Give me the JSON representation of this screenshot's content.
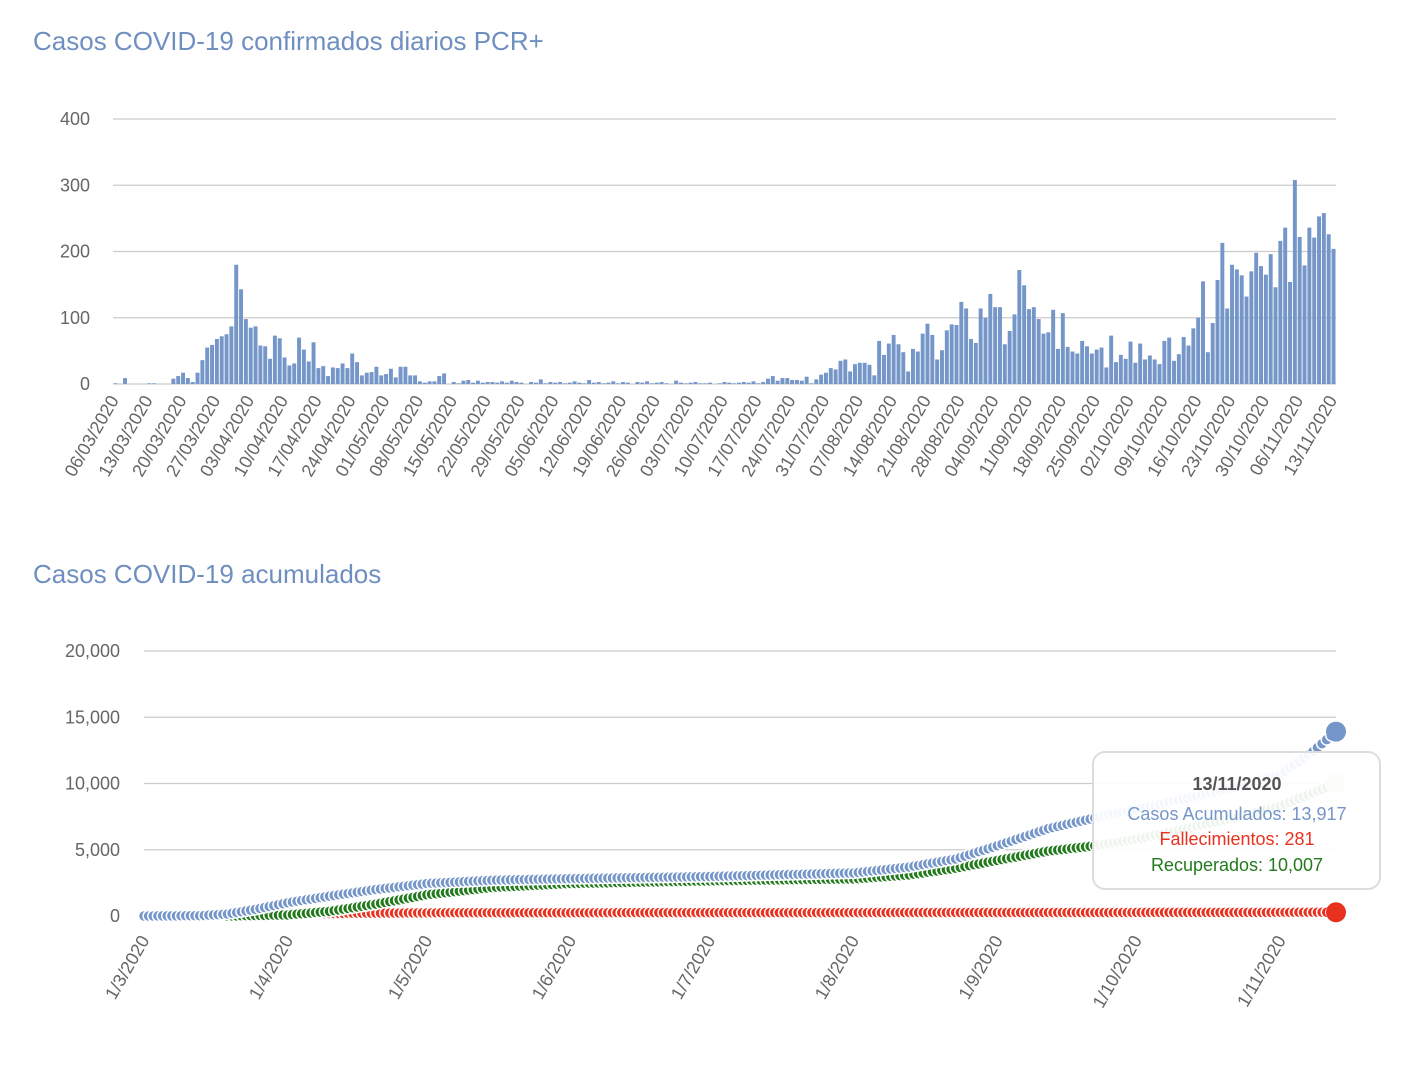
{
  "chart_data": [
    {
      "type": "bar",
      "title": "Casos COVID-19 confirmados diarios PCR+",
      "xlabel": "",
      "ylabel": "",
      "ylim": [
        0,
        400
      ],
      "yticks": [
        "0",
        "100",
        "200",
        "300",
        "400"
      ],
      "ytick_values": [
        0,
        100,
        200,
        300,
        400
      ],
      "start_date": "06/03/2020",
      "end_date": "13/11/2020",
      "xtick_every_days": 7,
      "xticks": [
        "06/03/2020",
        "13/03/2020",
        "20/03/2020",
        "27/03/2020",
        "03/04/2020",
        "10/04/2020",
        "17/04/2020",
        "24/04/2020",
        "01/05/2020",
        "08/05/2020",
        "15/05/2020",
        "22/05/2020",
        "29/05/2020",
        "05/06/2020",
        "12/06/2020",
        "19/06/2020",
        "26/06/2020",
        "03/07/2020",
        "10/07/2020",
        "17/07/2020",
        "24/07/2020",
        "31/07/2020",
        "07/08/2020",
        "14/08/2020",
        "21/08/2020",
        "28/08/2020",
        "04/09/2020",
        "11/09/2020",
        "18/09/2020",
        "25/09/2020",
        "02/10/2020",
        "09/10/2020",
        "16/10/2020",
        "23/10/2020",
        "30/10/2020",
        "06/11/2020",
        "13/11/2020"
      ],
      "grid": true,
      "color": "#7596c8",
      "values": [
        1,
        0,
        9,
        0,
        0,
        0,
        0,
        1,
        1,
        0,
        0,
        0,
        8,
        12,
        17,
        9,
        3,
        17,
        36,
        55,
        59,
        68,
        72,
        75,
        87,
        180,
        143,
        98,
        85,
        87,
        58,
        57,
        38,
        73,
        69,
        40,
        28,
        31,
        70,
        52,
        34,
        63,
        24,
        27,
        12,
        25,
        24,
        31,
        24,
        46,
        33,
        13,
        17,
        18,
        26,
        13,
        15,
        23,
        10,
        26,
        26,
        13,
        13,
        4,
        2,
        4,
        4,
        12,
        16,
        0,
        3,
        1,
        5,
        6,
        2,
        5,
        2,
        3,
        3,
        2,
        4,
        2,
        5,
        3,
        2,
        0,
        3,
        2,
        7,
        1,
        3,
        2,
        3,
        1,
        2,
        4,
        2,
        1,
        6,
        2,
        3,
        1,
        2,
        4,
        1,
        3,
        2,
        0,
        3,
        2,
        4,
        1,
        2,
        3,
        1,
        0,
        5,
        2,
        1,
        2,
        3,
        1,
        1,
        2,
        0,
        1,
        3,
        2,
        1,
        2,
        3,
        2,
        4,
        1,
        3,
        8,
        12,
        5,
        9,
        9,
        6,
        6,
        5,
        11,
        1,
        7,
        14,
        17,
        24,
        22,
        35,
        37,
        19,
        30,
        32,
        32,
        29,
        13,
        65,
        44,
        61,
        74,
        60,
        48,
        19,
        53,
        49,
        76,
        91,
        74,
        37,
        51,
        81,
        90,
        89,
        124,
        114,
        68,
        62,
        114,
        100,
        136,
        116,
        116,
        60,
        80,
        105,
        172,
        149,
        113,
        116,
        98,
        76,
        78,
        112,
        53,
        107,
        56,
        49,
        46,
        65,
        57,
        46,
        52,
        55,
        25,
        73,
        33,
        44,
        38,
        64,
        32,
        61,
        37,
        43,
        37,
        30,
        65,
        70,
        35,
        45,
        71,
        58,
        84,
        100,
        155,
        48,
        92,
        157,
        213,
        114,
        180,
        173,
        164,
        132,
        170,
        198,
        178,
        165,
        196,
        146,
        216,
        236,
        154,
        308,
        222,
        179,
        236,
        221,
        253,
        258,
        226,
        204
      ]
    },
    {
      "type": "line",
      "title": "Casos COVID-19 acumulados",
      "xlabel": "",
      "ylabel": "",
      "ylim": [
        0,
        20000
      ],
      "yticks": [
        "0",
        "5,000",
        "10,000",
        "15,000",
        "20,000"
      ],
      "ytick_values": [
        0,
        5000,
        10000,
        15000,
        20000
      ],
      "xlim_days": [
        0,
        257
      ],
      "xticks": [
        "1/3/2020",
        "1/4/2020",
        "1/5/2020",
        "1/6/2020",
        "1/7/2020",
        "1/8/2020",
        "1/9/2020",
        "1/10/2020",
        "1/11/2020"
      ],
      "xtick_days": [
        0,
        31,
        61,
        92,
        122,
        153,
        184,
        214,
        245
      ],
      "grid": true,
      "series": [
        {
          "name": "Casos Acumulados",
          "color": "#7596c8",
          "end_color": "#7596c8",
          "start_day": 0,
          "keypoints_day_value": [
            [
              0,
              0
            ],
            [
              12,
              20
            ],
            [
              18,
              150
            ],
            [
              24,
              500
            ],
            [
              31,
              1000
            ],
            [
              40,
              1500
            ],
            [
              50,
              2000
            ],
            [
              61,
              2450
            ],
            [
              75,
              2700
            ],
            [
              92,
              2820
            ],
            [
              122,
              2980
            ],
            [
              153,
              3250
            ],
            [
              165,
              3700
            ],
            [
              175,
              4300
            ],
            [
              184,
              5300
            ],
            [
              195,
              6600
            ],
            [
              205,
              7400
            ],
            [
              214,
              8050
            ],
            [
              225,
              8900
            ],
            [
              235,
              9700
            ],
            [
              245,
              10700
            ],
            [
              252,
              12400
            ],
            [
              257,
              13917
            ]
          ]
        },
        {
          "name": "Recuperados",
          "color": "#237a1d",
          "end_color": "#d5e5cf",
          "start_day": 18,
          "keypoints_day_value": [
            [
              18,
              0
            ],
            [
              31,
              80
            ],
            [
              40,
              350
            ],
            [
              50,
              900
            ],
            [
              61,
              1600
            ],
            [
              75,
              2150
            ],
            [
              92,
              2450
            ],
            [
              122,
              2650
            ],
            [
              153,
              2800
            ],
            [
              165,
              3100
            ],
            [
              175,
              3600
            ],
            [
              184,
              4200
            ],
            [
              195,
              4900
            ],
            [
              205,
              5300
            ],
            [
              214,
              5800
            ],
            [
              225,
              6600
            ],
            [
              235,
              7400
            ],
            [
              245,
              8300
            ],
            [
              257,
              10007
            ]
          ]
        },
        {
          "name": "Fallecimientos",
          "color": "#e8321f",
          "end_color": "#e8321f",
          "start_day": 18,
          "keypoints_day_value": [
            [
              18,
              0
            ],
            [
              24,
              60
            ],
            [
              31,
              140
            ],
            [
              45,
              210
            ],
            [
              61,
              240
            ],
            [
              122,
              255
            ],
            [
              200,
              265
            ],
            [
              257,
              281
            ]
          ]
        }
      ],
      "tooltip": {
        "date": "13/11/2020",
        "lines": [
          {
            "text": "Casos Acumulados: 13,917",
            "color": "#7596c8"
          },
          {
            "text": "Fallecimientos: 281",
            "color": "#e8321f"
          },
          {
            "text": "Recuperados: 10,007",
            "color": "#237a1d"
          }
        ]
      }
    }
  ]
}
